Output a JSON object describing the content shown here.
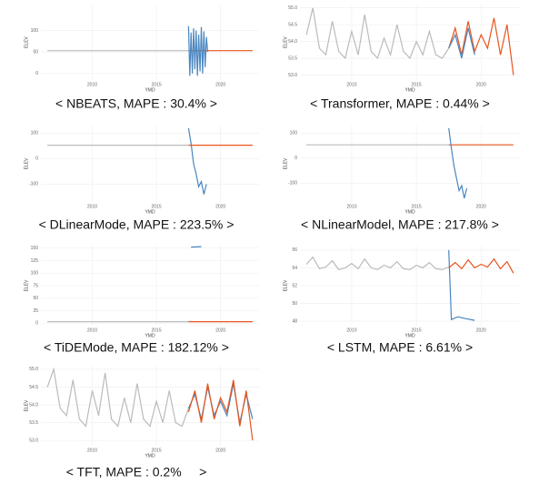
{
  "chart_data": [
    {
      "type": "line",
      "caption": "< NBEATS, MAPE : 30.4% >",
      "x_label": "YMD",
      "y_label": "ELEV",
      "grid": true,
      "xlim": [
        2006,
        2023
      ],
      "xticks": [
        2010,
        2015,
        2020
      ],
      "ylim": [
        -15,
        160
      ],
      "yticks": [
        0,
        50,
        100
      ],
      "series": [
        {
          "color": "#bbbbbb",
          "x": [
            2006.5,
            2008,
            2010,
            2012,
            2014,
            2016,
            2017.5
          ],
          "values": [
            53,
            53,
            53,
            53,
            53,
            53,
            53
          ]
        },
        {
          "color": "#e8541e",
          "x": [
            2017.5,
            2019,
            2020.5,
            2022.5
          ],
          "values": [
            53,
            53,
            53,
            53
          ]
        },
        {
          "color": "#4a86c0",
          "x": [
            2017.5,
            2017.6,
            2017.7,
            2017.8,
            2017.9,
            2018,
            2018.1,
            2018.2,
            2018.3,
            2018.4,
            2018.5,
            2018.6,
            2018.7,
            2018.8,
            2018.9,
            2019
          ],
          "values": [
            110,
            -5,
            95,
            0,
            105,
            10,
            100,
            -5,
            90,
            5,
            108,
            0,
            98,
            15,
            85,
            50
          ]
        }
      ]
    },
    {
      "type": "line",
      "caption": "< Transformer, MAPE : 0.44% >",
      "x_label": "YMD",
      "y_label": "ELEV",
      "grid": true,
      "xlim": [
        2006,
        2023
      ],
      "xticks": [
        2010,
        2015,
        2020
      ],
      "ylim": [
        52.85,
        55.1
      ],
      "yticks": [
        {
          "value": 53,
          "label": "53.0"
        },
        {
          "value": 53.5,
          "label": "53.5"
        },
        {
          "value": 54,
          "label": "54.0"
        },
        {
          "value": 54.5,
          "label": "54.5"
        },
        {
          "value": 55,
          "label": "55.0"
        }
      ],
      "series": [
        {
          "color": "#bbbbbb",
          "x": [
            2006.5,
            2007,
            2007.5,
            2008,
            2008.5,
            2009,
            2009.5,
            2010,
            2010.5,
            2011,
            2011.5,
            2012,
            2012.5,
            2013,
            2013.5,
            2014,
            2014.5,
            2015,
            2015.5,
            2016,
            2016.5,
            2017,
            2017.5
          ],
          "values": [
            54.2,
            55.0,
            53.8,
            53.6,
            54.6,
            53.7,
            53.5,
            54.3,
            53.6,
            54.8,
            53.7,
            53.5,
            54.1,
            53.6,
            54.5,
            53.7,
            53.5,
            54.0,
            53.6,
            54.3,
            53.6,
            53.5,
            53.8
          ]
        },
        {
          "color": "#e8541e",
          "x": [
            2017.5,
            2018,
            2018.5,
            2019,
            2019.5,
            2020,
            2020.5,
            2021,
            2021.5,
            2022,
            2022.5
          ],
          "values": [
            53.8,
            54.4,
            53.6,
            54.6,
            53.7,
            54.2,
            53.8,
            54.7,
            53.6,
            54.5,
            53.0
          ]
        },
        {
          "color": "#4a86c0",
          "x": [
            2017.5,
            2018,
            2018.5,
            2019,
            2019.5
          ],
          "values": [
            53.8,
            54.2,
            53.5,
            54.4,
            53.6
          ]
        }
      ]
    },
    {
      "type": "line",
      "caption": "< DLinearMode, MAPE : 223.5% >",
      "x_label": "YMD",
      "y_label": "ELEV",
      "grid": true,
      "xlim": [
        2006,
        2023
      ],
      "xticks": [
        2010,
        2015,
        2020
      ],
      "ylim": [
        -170,
        130
      ],
      "yticks": [
        -100,
        0,
        100
      ],
      "series": [
        {
          "color": "#bbbbbb",
          "x": [
            2006.5,
            2010,
            2014,
            2017.5
          ],
          "values": [
            53,
            53,
            53,
            53
          ]
        },
        {
          "color": "#e8541e",
          "x": [
            2017.5,
            2020,
            2022.5
          ],
          "values": [
            53,
            53,
            53
          ]
        },
        {
          "color": "#4a86c0",
          "x": [
            2017.5,
            2017.7,
            2017.9,
            2018.1,
            2018.3,
            2018.5,
            2018.7,
            2018.9
          ],
          "values": [
            120,
            60,
            -20,
            -60,
            -110,
            -90,
            -140,
            -100
          ]
        }
      ]
    },
    {
      "type": "line",
      "caption": "< NLinearModel, MAPE : 217.8% >",
      "x_label": "YMD",
      "y_label": "ELEV",
      "grid": true,
      "xlim": [
        2006,
        2023
      ],
      "xticks": [
        2010,
        2015,
        2020
      ],
      "ylim": [
        -175,
        130
      ],
      "yticks": [
        -100,
        0,
        100
      ],
      "series": [
        {
          "color": "#bbbbbb",
          "x": [
            2006.5,
            2010,
            2014,
            2017.5
          ],
          "values": [
            53,
            53,
            53,
            53
          ]
        },
        {
          "color": "#e8541e",
          "x": [
            2017.5,
            2020,
            2022.5
          ],
          "values": [
            53,
            53,
            53
          ]
        },
        {
          "color": "#4a86c0",
          "x": [
            2017.5,
            2017.7,
            2017.9,
            2018.1,
            2018.3,
            2018.5,
            2018.7,
            2018.9
          ],
          "values": [
            120,
            40,
            -30,
            -80,
            -130,
            -110,
            -160,
            -120
          ]
        }
      ]
    },
    {
      "type": "line",
      "caption": "< TiDEMode, MAPE : 182.12% >",
      "x_label": "YMD",
      "y_label": "ELEV",
      "grid": true,
      "xlim": [
        2006,
        2023
      ],
      "xticks": [
        2010,
        2015,
        2020
      ],
      "ylim": [
        -5,
        155
      ],
      "yticks": [
        0,
        25,
        50,
        75,
        100,
        125,
        150
      ],
      "series": [
        {
          "color": "#bbbbbb",
          "x": [
            2006.5,
            2010,
            2014,
            2017.5
          ],
          "values": [
            3,
            3,
            3,
            3
          ]
        },
        {
          "color": "#e8541e",
          "x": [
            2017.5,
            2020,
            2022.5
          ],
          "values": [
            3,
            3,
            3
          ]
        },
        {
          "color": "#4a86c0",
          "x": [
            2017.7,
            2018.5
          ],
          "values": [
            152,
            153
          ]
        }
      ]
    },
    {
      "type": "line",
      "caption": "< LSTM, MAPE : 6.61% >",
      "x_label": "YMD",
      "y_label": "ELEV",
      "grid": true,
      "xlim": [
        2006,
        2023
      ],
      "xticks": [
        2010,
        2015,
        2020
      ],
      "ylim": [
        47.5,
        56.5
      ],
      "yticks": [
        48,
        50,
        52,
        54,
        56
      ],
      "series": [
        {
          "color": "#bbbbbb",
          "x": [
            2006.5,
            2007,
            2007.5,
            2008,
            2008.5,
            2009,
            2009.5,
            2010,
            2010.5,
            2011,
            2011.5,
            2012,
            2012.5,
            2013,
            2013.5,
            2014,
            2014.5,
            2015,
            2015.5,
            2016,
            2016.5,
            2017,
            2017.5
          ],
          "values": [
            54.4,
            55.2,
            53.9,
            54.1,
            54.8,
            53.8,
            54.0,
            54.5,
            53.9,
            55.0,
            54.0,
            53.8,
            54.3,
            54.0,
            54.7,
            53.9,
            53.8,
            54.3,
            54.0,
            54.6,
            53.9,
            53.8,
            54.1
          ]
        },
        {
          "color": "#e8541e",
          "x": [
            2017.5,
            2018,
            2018.5,
            2019,
            2019.5,
            2020,
            2020.5,
            2021,
            2021.5,
            2022,
            2022.5
          ],
          "values": [
            54.0,
            54.6,
            53.9,
            54.9,
            54.0,
            54.4,
            54.1,
            55.0,
            53.9,
            54.7,
            53.4
          ]
        },
        {
          "color": "#4a86c0",
          "x": [
            2017.5,
            2017.7,
            2018.2,
            2018.8,
            2019.5
          ],
          "values": [
            56,
            48.2,
            48.5,
            48.3,
            48.1
          ]
        }
      ]
    },
    {
      "type": "line",
      "caption": "< TFT, MAPE : 0.2%     >",
      "x_label": "YMD",
      "y_label": "ELEV",
      "grid": true,
      "xlim": [
        2006,
        2023
      ],
      "xticks": [
        2010,
        2015,
        2020
      ],
      "ylim": [
        52.85,
        55.1
      ],
      "yticks": [
        {
          "value": 53,
          "label": "53.0"
        },
        {
          "value": 53.5,
          "label": "53.5"
        },
        {
          "value": 54,
          "label": "54.0"
        },
        {
          "value": 54.5,
          "label": "54.5"
        },
        {
          "value": 55,
          "label": "55.0"
        }
      ],
      "series": [
        {
          "color": "#bbbbbb",
          "x": [
            2006.5,
            2007,
            2007.5,
            2008,
            2008.5,
            2009,
            2009.5,
            2010,
            2010.5,
            2011,
            2011.5,
            2012,
            2012.5,
            2013,
            2013.5,
            2014,
            2014.5,
            2015,
            2015.5,
            2016,
            2016.5,
            2017,
            2017.5
          ],
          "values": [
            54.5,
            55.0,
            53.9,
            53.7,
            54.7,
            53.6,
            53.4,
            54.4,
            53.7,
            54.9,
            53.6,
            53.4,
            54.2,
            53.5,
            54.6,
            53.6,
            53.4,
            54.1,
            53.5,
            54.4,
            53.5,
            53.4,
            53.9
          ]
        },
        {
          "color": "#4a86c0",
          "x": [
            2017.5,
            2018,
            2018.5,
            2019,
            2019.5,
            2020,
            2020.5,
            2021,
            2021.5,
            2022,
            2022.5
          ],
          "values": [
            53.9,
            54.3,
            53.6,
            54.5,
            53.7,
            54.1,
            53.7,
            54.6,
            53.5,
            54.3,
            53.6
          ]
        },
        {
          "color": "#e8541e",
          "x": [
            2017.5,
            2018,
            2018.5,
            2019,
            2019.5,
            2020,
            2020.5,
            2021,
            2021.5,
            2022,
            2022.5
          ],
          "values": [
            53.8,
            54.4,
            53.5,
            54.6,
            53.6,
            54.2,
            53.8,
            54.7,
            53.4,
            54.4,
            53.0
          ]
        }
      ]
    }
  ]
}
